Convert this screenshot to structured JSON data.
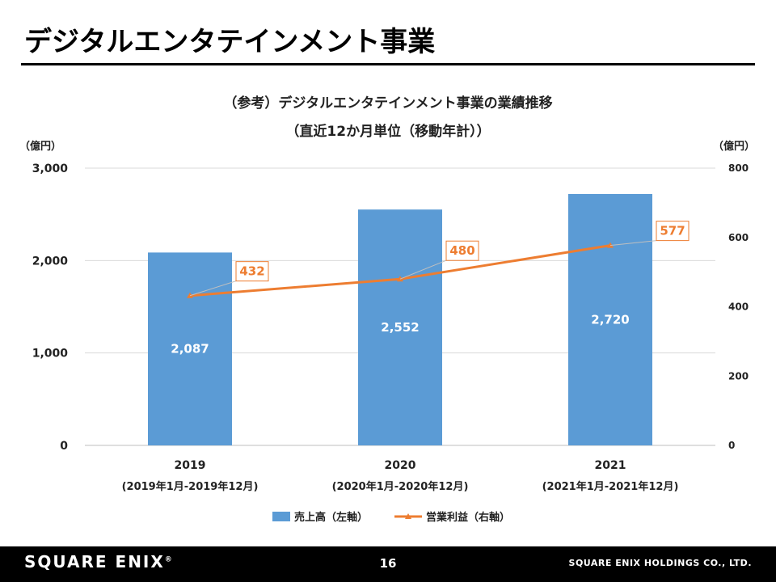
{
  "page": {
    "title": "デジタルエンタテインメント事業",
    "page_number": "16",
    "logo_text": "SQUARE ENIX",
    "logo_mark": "®",
    "company": "SQUARE ENIX HOLDINGS CO., LTD."
  },
  "chart_data": {
    "type": "bar",
    "title": "（参考）デジタルエンタテインメント事業の業績推移",
    "subtitle": "（直近12か月単位（移動年計））",
    "ylabel_left": "（億円）",
    "ylabel_right": "（億円）",
    "categories": [
      "2019",
      "2020",
      "2021"
    ],
    "category_sublabels": [
      "(2019年1月-2019年12月)",
      "(2020年1月-2020年12月)",
      "(2021年1月-2021年12月)"
    ],
    "ylim_left": [
      0,
      3000
    ],
    "yticks_left": [
      "0",
      "1,000",
      "2,000",
      "3,000"
    ],
    "ylim_right": [
      0,
      800
    ],
    "yticks_right": [
      "0",
      "200",
      "400",
      "600",
      "800"
    ],
    "grid": true,
    "legend_position": "bottom",
    "series": [
      {
        "name": "売上高（左軸）",
        "type": "bar",
        "axis": "left",
        "color": "#5B9BD5",
        "values": [
          2087,
          2552,
          2720
        ],
        "labels": [
          "2,087",
          "2,552",
          "2,720"
        ]
      },
      {
        "name": "営業利益（右軸）",
        "type": "line",
        "axis": "right",
        "color": "#ED7D31",
        "values": [
          432,
          480,
          577
        ],
        "labels": [
          "432",
          "480",
          "577"
        ]
      }
    ]
  }
}
